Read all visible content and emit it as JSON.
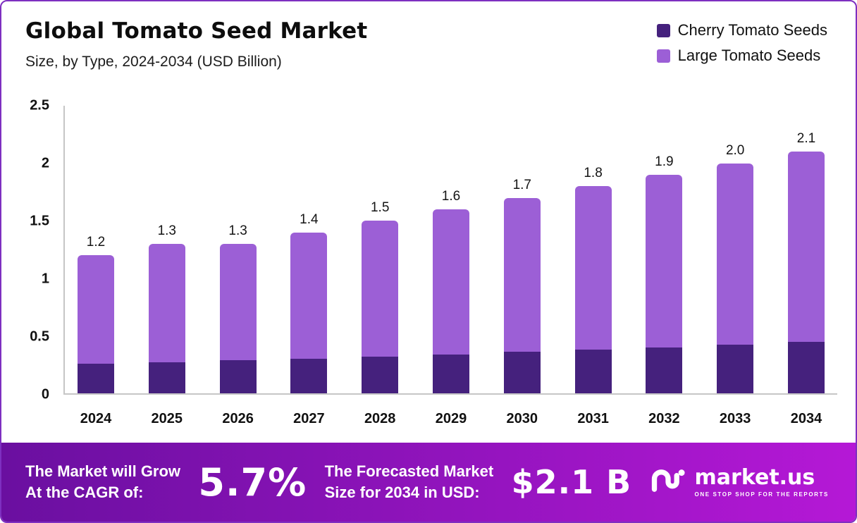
{
  "header": {
    "title": "Global Tomato Seed Market",
    "subtitle": "Size, by Type, 2024-2034 (USD Billion)"
  },
  "legend": [
    {
      "label": "Cherry Tomato Seeds",
      "color": "#45217d"
    },
    {
      "label": "Large Tomato Seeds",
      "color": "#9c5fd6"
    }
  ],
  "chart_data": {
    "type": "bar",
    "stacked": true,
    "title": "Global Tomato Seed Market",
    "subtitle": "Size, by Type, 2024-2034 (USD Billion)",
    "categories": [
      "2024",
      "2025",
      "2026",
      "2027",
      "2028",
      "2029",
      "2030",
      "2031",
      "2032",
      "2033",
      "2034"
    ],
    "series": [
      {
        "name": "Cherry Tomato Seeds",
        "color": "#45217d",
        "values": [
          0.26,
          0.27,
          0.29,
          0.3,
          0.32,
          0.34,
          0.36,
          0.38,
          0.4,
          0.42,
          0.45
        ]
      },
      {
        "name": "Large Tomato Seeds",
        "color": "#9c5fd6",
        "values": [
          0.94,
          1.03,
          1.01,
          1.1,
          1.18,
          1.26,
          1.34,
          1.42,
          1.5,
          1.58,
          1.65
        ]
      }
    ],
    "totals": [
      "1.2",
      "1.3",
      "1.3",
      "1.4",
      "1.5",
      "1.6",
      "1.7",
      "1.8",
      "1.9",
      "2.0",
      "2.1"
    ],
    "ylabel": "",
    "xlabel": "",
    "ylim": [
      0,
      2.5
    ],
    "yticks": [
      "0",
      "0.5",
      "1",
      "1.5",
      "2",
      "2.5"
    ],
    "grid": false,
    "legend_position": "top-right"
  },
  "banner": {
    "cagr_label_line1": "The Market will Grow",
    "cagr_label_line2": "At the CAGR of:",
    "cagr_value": "5.7%",
    "forecast_label_line1": "The Forecasted Market",
    "forecast_label_line2": "Size for 2034 in USD:",
    "forecast_value": "$2.1 B",
    "brand_name": "market.us",
    "brand_tagline": "ONE STOP SHOP FOR THE REPORTS",
    "gradient_from": "#6a0fa0",
    "gradient_to": "#b518d6"
  },
  "colors": {
    "card_border": "#7e2fc0",
    "axis_line": "#c6c6c6",
    "text": "#111111"
  }
}
